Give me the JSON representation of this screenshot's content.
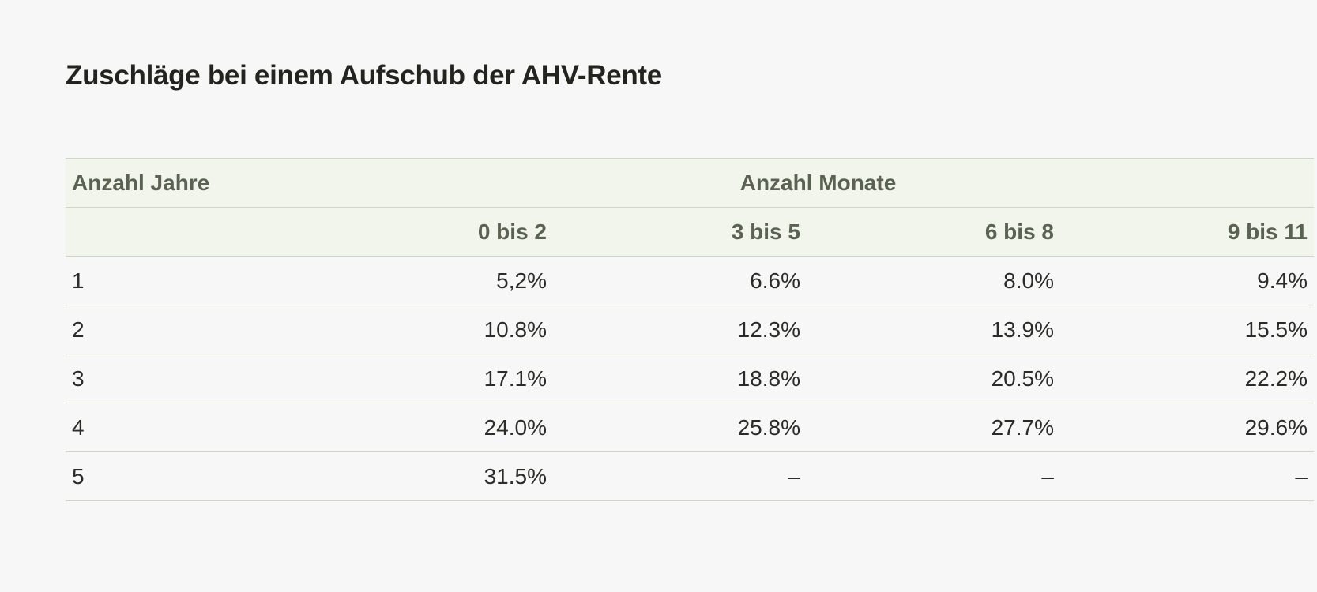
{
  "page": {
    "title": "Zuschläge bei einem Aufschub der AHV-Rente"
  },
  "table": {
    "header_years": "Anzahl Jahre",
    "header_months": "Anzahl Monate",
    "month_columns": [
      "0 bis 2",
      "3 bis 5",
      "6 bis 8",
      "9 bis 11"
    ],
    "rows": [
      {
        "year": "1",
        "values": [
          "5,2%",
          "6.6%",
          "8.0%",
          "9.4%"
        ]
      },
      {
        "year": "2",
        "values": [
          "10.8%",
          "12.3%",
          "13.9%",
          "15.5%"
        ]
      },
      {
        "year": "3",
        "values": [
          "17.1%",
          "18.8%",
          "20.5%",
          "22.2%"
        ]
      },
      {
        "year": "4",
        "values": [
          "24.0%",
          "25.8%",
          "27.7%",
          "29.6%"
        ]
      },
      {
        "year": "5",
        "values": [
          "31.5%",
          "–",
          "–",
          "–"
        ]
      }
    ]
  },
  "colors": {
    "background": "#f7f7f7",
    "header_background": "#f2f5ec",
    "header_text": "#5a6352",
    "border": "#cfd6c4"
  }
}
